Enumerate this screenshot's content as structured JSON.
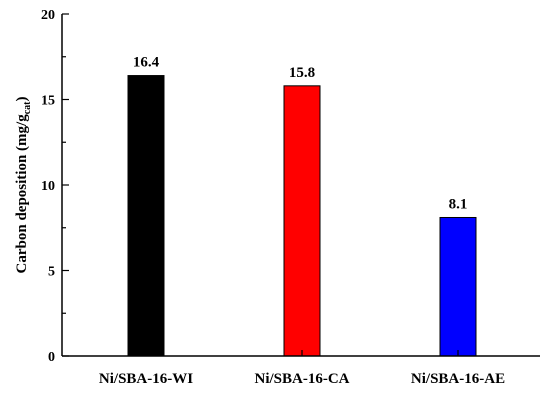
{
  "chart_data": {
    "type": "bar",
    "categories": [
      "Ni/SBA-16-WI",
      "Ni/SBA-16-CA",
      "Ni/SBA-16-AE"
    ],
    "values": [
      16.4,
      15.8,
      8.1
    ],
    "value_labels": [
      "16.4",
      "15.8",
      "8.1"
    ],
    "colors": [
      "#000000",
      "#ff0000",
      "#0000ff"
    ],
    "ylabel": {
      "main": "Carbon deposition (mg/g",
      "sub": "cat",
      "close": ")"
    },
    "ylim": [
      0,
      20
    ],
    "yticks": [
      {
        "value": 0,
        "label": "0"
      },
      {
        "value": 5,
        "label": "5"
      },
      {
        "value": 10,
        "label": "10"
      },
      {
        "value": 15,
        "label": "15"
      },
      {
        "value": 20,
        "label": "20"
      }
    ],
    "y_minor_step": 2.5,
    "grid": false,
    "legend": "none"
  }
}
